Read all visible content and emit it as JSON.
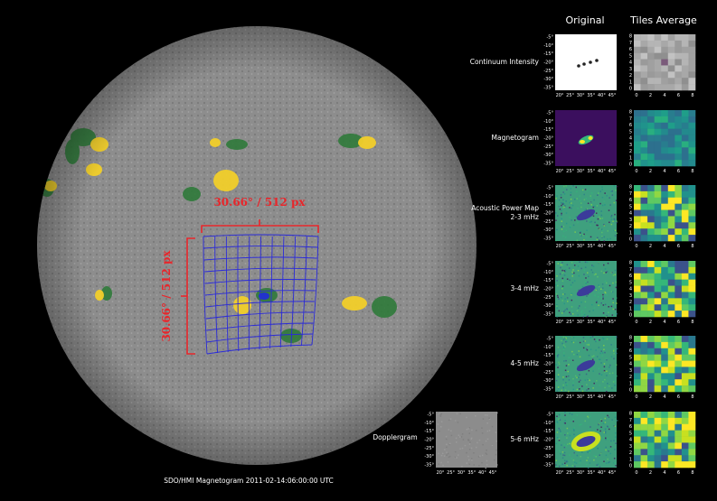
{
  "header": {
    "original": "Original",
    "tiles_average": "Tiles Average"
  },
  "sun": {
    "caption": "SDO/HMI Magnetogram 2011-02-14:06:00:00 UTC",
    "width_annotation": "30.66° / 512 px",
    "height_annotation": "30.66° / 512 px",
    "grid_color": "#2b2bd8",
    "bracket_color": "#e8262b",
    "disk_color": "#8d8d8d",
    "positive_color": "#f2cf2a",
    "negative_color": "#2f7a3a"
  },
  "rows": [
    {
      "label_lines": [
        "Continuum Intensity"
      ],
      "original_style": "white",
      "tiles_style": "gray"
    },
    {
      "label_lines": [
        "Magnetogram"
      ],
      "original_style": "purple",
      "tiles_style": "teal"
    },
    {
      "label_lines": [
        "Acoustic Power Map",
        "2-3 mHz"
      ],
      "original_style": "green",
      "tiles_style": "viridis"
    },
    {
      "label_lines": [
        "3-4 mHz"
      ],
      "original_style": "green",
      "tiles_style": "viridis"
    },
    {
      "label_lines": [
        "4-5 mHz"
      ],
      "original_style": "green",
      "tiles_style": "viridis"
    },
    {
      "label_lines": [
        "5-6 mHz"
      ],
      "original_style": "ring",
      "tiles_style": "viridis"
    }
  ],
  "dopplergram": {
    "label": "Dopplergram"
  },
  "axes": {
    "original_x_ticks": [
      "20°",
      "25°",
      "30°",
      "35°",
      "40°",
      "45°"
    ],
    "original_y_ticks": [
      "-5°",
      "-10°",
      "-15°",
      "-20°",
      "-25°",
      "-30°",
      "-35°"
    ],
    "tiles_x_ticks": [
      "0",
      "2",
      "4",
      "6",
      "8"
    ],
    "tiles_y_ticks": [
      "8",
      "7",
      "6",
      "5",
      "4",
      "3",
      "2",
      "1",
      "0"
    ]
  }
}
